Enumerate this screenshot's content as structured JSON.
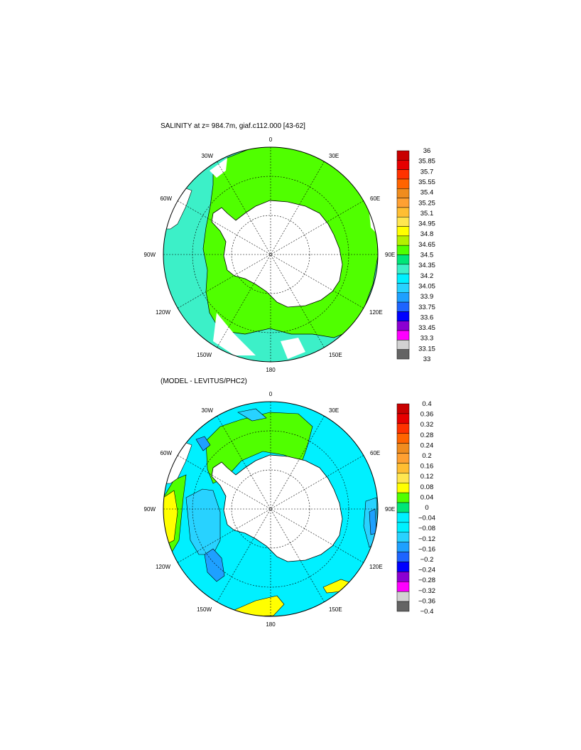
{
  "figure": {
    "panels": [
      {
        "title": "SALINITY at z= 984.7m, giaf.c112.000 [43-62]",
        "lon_labels": [
          "0",
          "30E",
          "60E",
          "90E",
          "120E",
          "150E",
          "180",
          "150W",
          "120W",
          "90W",
          "60W",
          "30W"
        ],
        "colorbar_labels": [
          "36",
          "35.85",
          "35.7",
          "35.55",
          "35.4",
          "35.25",
          "35.1",
          "34.95",
          "34.8",
          "34.65",
          "34.5",
          "34.35",
          "34.2",
          "34.05",
          "33.9",
          "33.75",
          "33.6",
          "33.45",
          "33.3",
          "33.15",
          "33"
        ],
        "colorbar_colors": [
          "#c80000",
          "#e60000",
          "#ff3200",
          "#ff6400",
          "#f08c1e",
          "#ffa032",
          "#ffbe32",
          "#ffe650",
          "#ffff00",
          "#b4f000",
          "#50ff00",
          "#00e678",
          "#3cf0c8",
          "#00f0ff",
          "#28d2ff",
          "#1ea0ff",
          "#1e64ff",
          "#0000ff",
          "#8c00d2",
          "#ff00ff",
          "#d2d2d2",
          "#646464"
        ]
      },
      {
        "title": "(MODEL - LEVITUS/PHC2)",
        "lon_labels": [
          "0",
          "30E",
          "60E",
          "90E",
          "120E",
          "150E",
          "180",
          "150W",
          "120W",
          "90W",
          "60W",
          "30W"
        ],
        "colorbar_labels": [
          "0.4",
          "0.36",
          "0.32",
          "0.28",
          "0.24",
          "0.2",
          "0.16",
          "0.12",
          "0.08",
          "0.04",
          "0",
          "−0.04",
          "−0.08",
          "−0.12",
          "−0.16",
          "−0.2",
          "−0.24",
          "−0.28",
          "−0.32",
          "−0.36",
          "−0.4"
        ],
        "colorbar_colors": [
          "#c80000",
          "#e60000",
          "#ff3200",
          "#ff6400",
          "#f08c1e",
          "#ffa032",
          "#ffbe32",
          "#ffe650",
          "#ffff00",
          "#50ff00",
          "#00e678",
          "#00f0ff",
          "#00f0ff",
          "#28d2ff",
          "#1ea0ff",
          "#1e64ff",
          "#0000ff",
          "#8c00d2",
          "#ff00ff",
          "#d2d2d2",
          "#646464"
        ]
      }
    ],
    "colors": {
      "ocean_green": "#50ff00",
      "ocean_cyan": "#00f0ff",
      "ocean_teal": "#3cf0c8",
      "ocean_light_blue": "#28d2ff",
      "ocean_blue": "#1ea0ff",
      "diff_yellow": "#ffff00",
      "land": "#ffffff"
    }
  }
}
